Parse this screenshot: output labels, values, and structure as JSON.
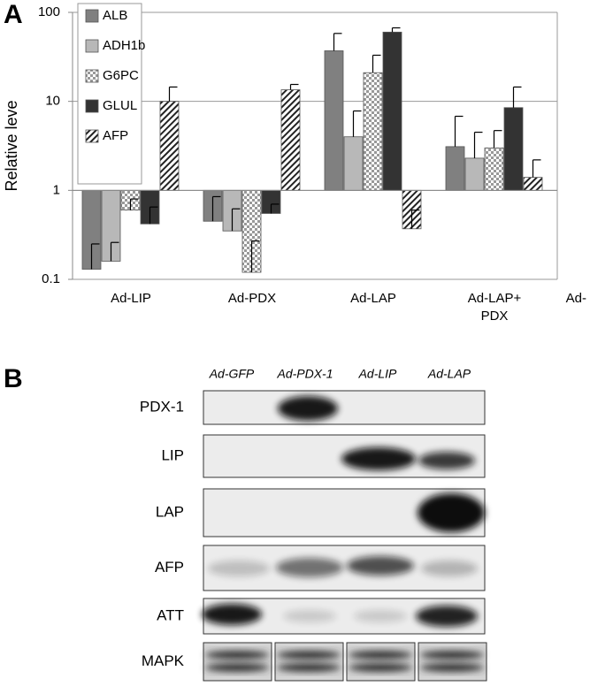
{
  "chart_data": {
    "type": "bar",
    "panel_label": "A",
    "y_label": "Relative leve",
    "log_scale": true,
    "categories": [
      "Ad-LIP",
      "Ad-PDX",
      "Ad-LAP",
      "Ad-LAP+ PDX",
      "Ad-"
    ],
    "series": [
      {
        "name": "ALB",
        "color": "#808080",
        "pattern": "solid",
        "values": [
          0.13,
          0.45,
          37,
          3.1,
          null
        ],
        "errors": [
          0.12,
          0.4,
          21,
          3.7,
          null
        ]
      },
      {
        "name": "ADH1b",
        "color": "#b8b8b8",
        "pattern": "solid",
        "values": [
          0.16,
          0.35,
          4,
          2.3,
          null
        ],
        "errors": [
          0.1,
          0.27,
          3.8,
          2.2,
          null
        ]
      },
      {
        "name": "G6PC",
        "color": "#ffffff",
        "pattern": "checker",
        "values": [
          0.6,
          0.12,
          21,
          3.0,
          null
        ],
        "errors": [
          0.2,
          0.15,
          12,
          1.7,
          null
        ]
      },
      {
        "name": "GLUL",
        "color": "#333333",
        "pattern": "solid",
        "values": [
          0.42,
          0.55,
          60,
          8.5,
          null
        ],
        "errors": [
          0.23,
          0.15,
          7,
          6,
          null
        ]
      },
      {
        "name": "AFP",
        "color": "#ffffff",
        "pattern": "hatch",
        "values": [
          10,
          13.5,
          0.37,
          1.4,
          null
        ],
        "errors": [
          4.5,
          2,
          0.23,
          0.8,
          null
        ]
      }
    ],
    "ylim": [
      0.1,
      100
    ],
    "yticks": [
      0.1,
      1,
      10,
      100
    ],
    "grid": true,
    "legend": "upper left"
  },
  "blot": {
    "panel_label": "B",
    "lanes": [
      "Ad-GFP",
      "Ad-PDX-1",
      "Ad-LIP",
      "Ad-LAP"
    ],
    "rows": [
      "PDX-1",
      "LIP",
      "LAP",
      "AFP",
      "ATT",
      "MAPK"
    ]
  }
}
